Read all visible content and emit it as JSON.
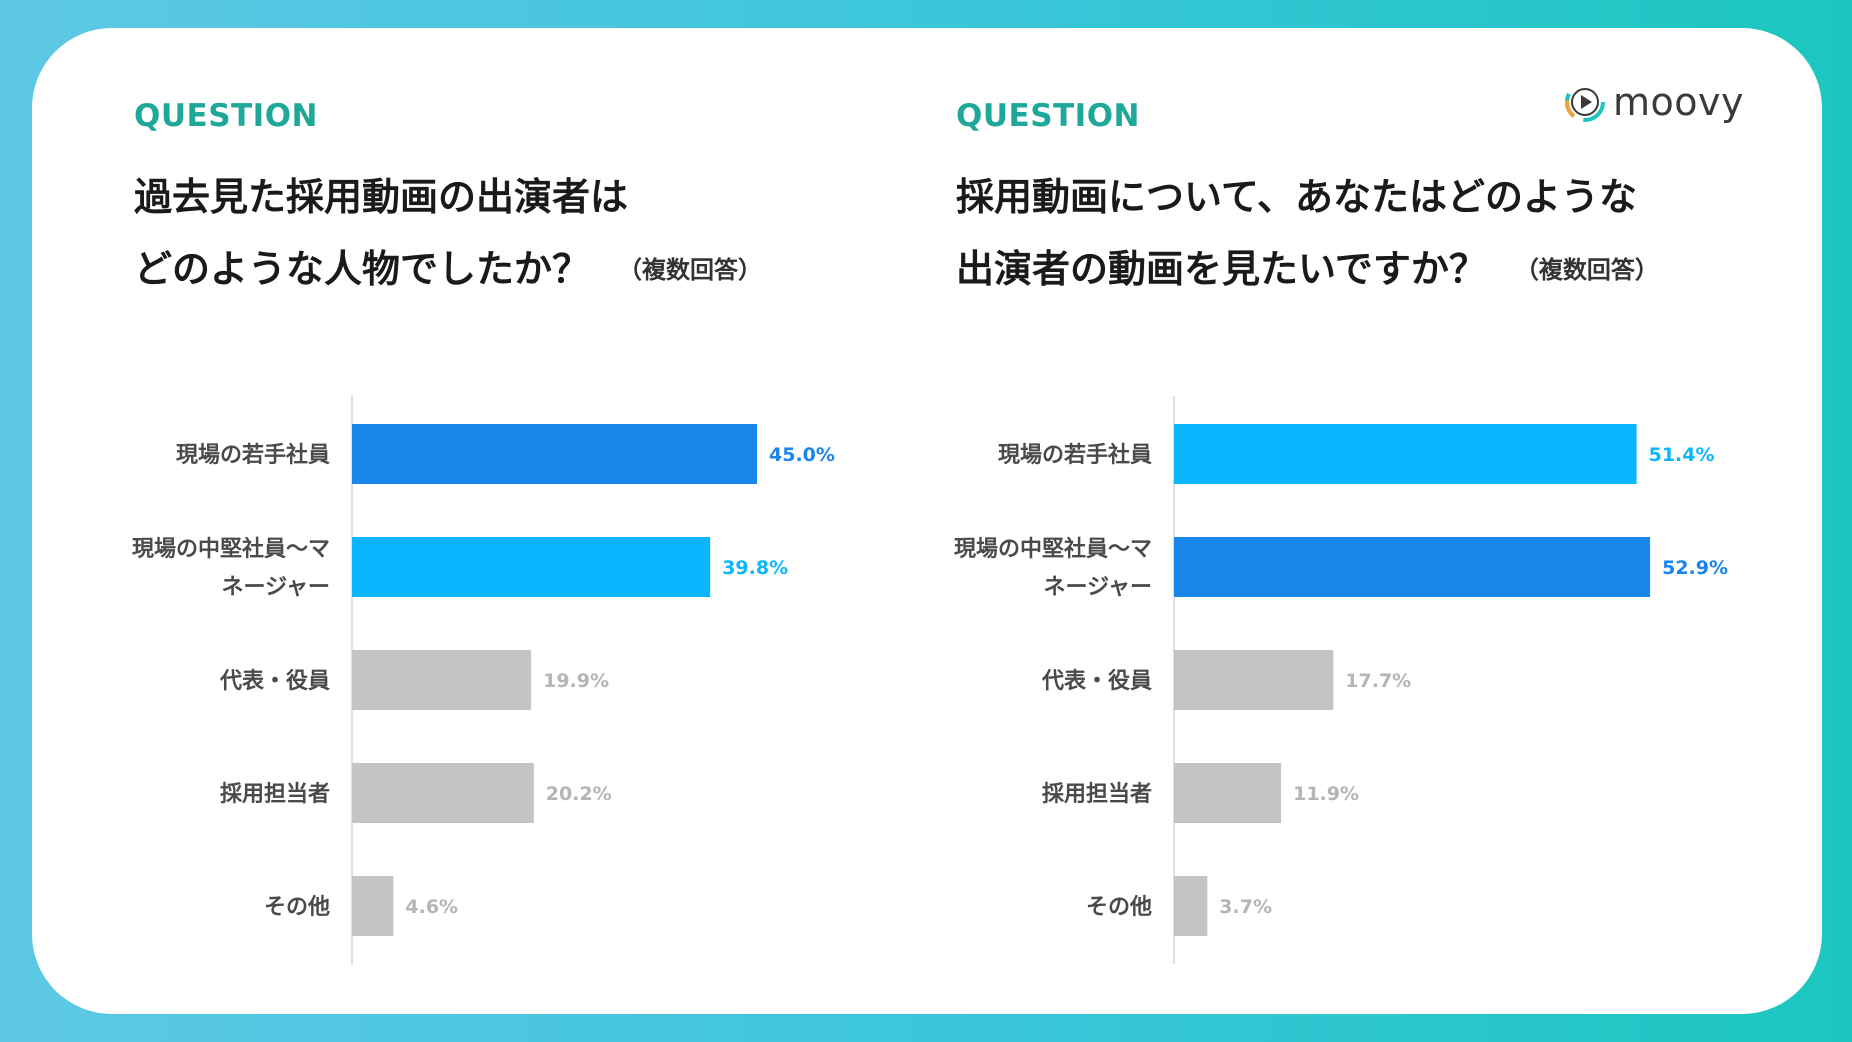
{
  "brand": {
    "name": "moovy"
  },
  "colors": {
    "dark_blue": "#1a85ea",
    "light_blue": "#0cb6ff",
    "gray": "#c4c4c4",
    "teal": "#1fa89a"
  },
  "panels": [
    {
      "label": "QUESTION",
      "line1": "過去見た採用動画の出演者は",
      "line2": "どのような人物でしたか？",
      "note": "（複数回答）"
    },
    {
      "label": "QUESTION",
      "line1": "採用動画について、あなたはどのような",
      "line2": "出演者の動画を見たいですか？",
      "note": "（複数回答）"
    }
  ],
  "chart_data": [
    {
      "type": "bar",
      "orientation": "horizontal",
      "categories": [
        [
          "現場の若手社員"
        ],
        [
          "現場の中堅社員〜マ",
          "ネージャー"
        ],
        [
          "代表・役員"
        ],
        [
          "採用担当者"
        ],
        [
          "その他"
        ]
      ],
      "values": [
        45.0,
        39.8,
        19.9,
        20.2,
        4.6
      ],
      "value_labels": [
        "45.0%",
        "39.8%",
        "19.9%",
        "20.2%",
        "4.6%"
      ],
      "bar_colors": [
        "#1a85ea",
        "#0cb6ff",
        "#c4c4c4",
        "#c4c4c4",
        "#c4c4c4"
      ],
      "label_colors": [
        "#1a85ea",
        "#0cb6ff",
        "#b5b5b5",
        "#b5b5b5",
        "#b5b5b5"
      ],
      "xlim": [
        0,
        60
      ],
      "grid": false
    },
    {
      "type": "bar",
      "orientation": "horizontal",
      "categories": [
        [
          "現場の若手社員"
        ],
        [
          "現場の中堅社員〜マ",
          "ネージャー"
        ],
        [
          "代表・役員"
        ],
        [
          "採用担当者"
        ],
        [
          "その他"
        ]
      ],
      "values": [
        51.4,
        52.9,
        17.7,
        11.9,
        3.7
      ],
      "value_labels": [
        "51.4%",
        "52.9%",
        "17.7%",
        "11.9%",
        "3.7%"
      ],
      "bar_colors": [
        "#0cb6ff",
        "#1a85ea",
        "#c4c4c4",
        "#c4c4c4",
        "#c4c4c4"
      ],
      "label_colors": [
        "#0cb6ff",
        "#1a85ea",
        "#b5b5b5",
        "#b5b5b5",
        "#b5b5b5"
      ],
      "xlim": [
        0,
        60
      ],
      "grid": false
    }
  ]
}
